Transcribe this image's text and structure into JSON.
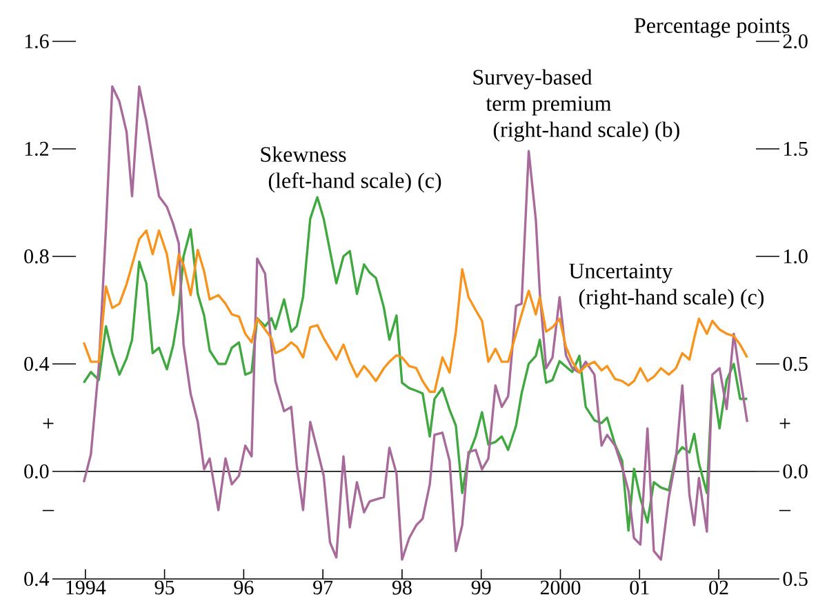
{
  "chart_data": {
    "type": "line",
    "x": [
      1993.98,
      1994.07,
      1994.17,
      1994.26,
      1994.34,
      1994.43,
      1994.52,
      1994.59,
      1994.68,
      1994.77,
      1994.85,
      1994.93,
      1995.03,
      1995.11,
      1995.18,
      1995.24,
      1995.33,
      1995.42,
      1995.5,
      1995.57,
      1995.68,
      1995.77,
      1995.85,
      1995.94,
      1996.02,
      1996.1,
      1996.17,
      1996.27,
      1996.35,
      1996.4,
      1996.51,
      1996.6,
      1996.67,
      1996.75,
      1996.84,
      1996.93,
      1997.01,
      1997.09,
      1997.17,
      1997.26,
      1997.34,
      1997.43,
      1997.52,
      1997.59,
      1997.67,
      1997.77,
      1997.84,
      1997.93,
      1998.0,
      1998.09,
      1998.18,
      1998.26,
      1998.35,
      1998.41,
      1998.51,
      1998.6,
      1998.68,
      1998.76,
      1998.84,
      1998.93,
      1999.01,
      1999.09,
      1999.18,
      1999.26,
      1999.34,
      1999.44,
      1999.51,
      1999.6,
      1999.69,
      1999.74,
      1999.82,
      1999.9,
      1999.99,
      2000.07,
      2000.15,
      2000.24,
      2000.32,
      2000.43,
      2000.52,
      2000.59,
      2000.69,
      2000.78,
      2000.86,
      2000.93,
      2001.01,
      2001.1,
      2001.18,
      2001.27,
      2001.37,
      2001.46,
      2001.54,
      2001.63,
      2001.69,
      2001.75,
      2001.85,
      2001.92,
      2002.01,
      2002.1,
      2002.19,
      2002.27,
      2002.36
    ],
    "series": [
      {
        "name": "Skewness (left-hand scale) (c)",
        "color": "#3fa83f",
        "values": [
          0.33,
          0.37,
          0.34,
          0.54,
          0.44,
          0.36,
          0.42,
          0.49,
          0.78,
          0.7,
          0.44,
          0.46,
          0.38,
          0.47,
          0.6,
          0.8,
          0.9,
          0.66,
          0.58,
          0.45,
          0.4,
          0.4,
          0.46,
          0.48,
          0.36,
          0.37,
          0.57,
          0.54,
          0.57,
          0.53,
          0.64,
          0.52,
          0.54,
          0.65,
          0.94,
          1.02,
          0.94,
          0.82,
          0.7,
          0.8,
          0.82,
          0.66,
          0.77,
          0.74,
          0.72,
          0.61,
          0.49,
          0.58,
          0.33,
          0.31,
          0.3,
          0.29,
          0.13,
          0.27,
          0.31,
          0.23,
          0.17,
          -0.08,
          0.06,
          0.13,
          0.22,
          0.1,
          0.11,
          0.13,
          0.08,
          0.17,
          0.29,
          0.4,
          0.43,
          0.49,
          0.33,
          0.34,
          0.41,
          0.39,
          0.37,
          0.43,
          0.24,
          0.19,
          0.18,
          0.2,
          0.1,
          0.04,
          -0.22,
          0.01,
          -0.1,
          -0.19,
          -0.04,
          -0.06,
          -0.07,
          0.06,
          0.09,
          0.07,
          0.14,
          0.03,
          -0.08,
          0.34,
          0.16,
          0.34,
          0.4,
          0.27,
          0.27
        ]
      },
      {
        "name": "Survey-based term premium (right-hand scale) (b)",
        "color": "#a86a9a",
        "axis": "y2",
        "values": [
          -0.05,
          0.08,
          0.49,
          1.13,
          1.79,
          1.72,
          1.58,
          1.28,
          1.79,
          1.63,
          1.45,
          1.28,
          1.23,
          1.15,
          1.06,
          0.59,
          0.36,
          0.23,
          0.01,
          0.06,
          -0.18,
          0.06,
          -0.06,
          -0.02,
          0.12,
          0.07,
          0.99,
          0.92,
          0.58,
          0.42,
          0.28,
          0.3,
          0.03,
          -0.18,
          0.23,
          0.1,
          -0.02,
          -0.33,
          -0.4,
          0.07,
          -0.26,
          -0.05,
          -0.19,
          -0.14,
          -0.13,
          -0.12,
          0.11,
          -0.01,
          -0.41,
          -0.31,
          -0.25,
          -0.22,
          -0.06,
          0.17,
          0.18,
          0.05,
          -0.37,
          -0.25,
          0.09,
          0.1,
          0.01,
          0.06,
          0.4,
          0.3,
          0.35,
          0.77,
          0.78,
          1.49,
          1.17,
          0.83,
          0.48,
          0.53,
          0.81,
          0.54,
          0.48,
          0.46,
          0.51,
          0.45,
          0.12,
          0.17,
          0.12,
          0.02,
          -0.09,
          -0.31,
          -0.34,
          0.2,
          -0.37,
          -0.41,
          -0.12,
          0.06,
          0.4,
          -0.11,
          -0.25,
          -0.03,
          -0.28,
          0.45,
          0.48,
          0.29,
          0.64,
          0.44,
          0.23
        ]
      },
      {
        "name": "Uncertainty (right-hand scale) (c)",
        "color": "#f7941e",
        "axis": "y2",
        "values": [
          0.6,
          0.51,
          0.51,
          0.86,
          0.76,
          0.78,
          0.87,
          0.96,
          1.08,
          1.12,
          1.01,
          1.12,
          1.01,
          0.82,
          1.01,
          0.96,
          0.82,
          1.03,
          0.93,
          0.8,
          0.82,
          0.78,
          0.73,
          0.72,
          0.64,
          0.6,
          0.71,
          0.66,
          0.62,
          0.55,
          0.57,
          0.6,
          0.58,
          0.53,
          0.67,
          0.68,
          0.62,
          0.57,
          0.52,
          0.59,
          0.51,
          0.44,
          0.49,
          0.46,
          0.42,
          0.48,
          0.51,
          0.54,
          0.53,
          0.49,
          0.48,
          0.42,
          0.37,
          0.37,
          0.53,
          0.46,
          0.65,
          0.94,
          0.81,
          0.75,
          0.7,
          0.51,
          0.57,
          0.51,
          0.51,
          0.64,
          0.73,
          0.84,
          0.73,
          0.81,
          0.65,
          0.67,
          0.71,
          0.58,
          0.51,
          0.46,
          0.49,
          0.51,
          0.47,
          0.49,
          0.43,
          0.42,
          0.4,
          0.42,
          0.48,
          0.42,
          0.44,
          0.48,
          0.45,
          0.48,
          0.55,
          0.52,
          0.62,
          0.71,
          0.64,
          0.7,
          0.66,
          0.64,
          0.63,
          0.59,
          0.53
        ]
      }
    ],
    "xlim": [
      1993.88,
      2002.47
    ],
    "xticks": [
      1994,
      {
        "value": 1995,
        "label": "95"
      },
      {
        "value": 1996,
        "label": "96"
      },
      {
        "value": 1997,
        "label": "97"
      },
      {
        "value": 1998,
        "label": "98"
      },
      {
        "value": 1999,
        "label": "99"
      },
      2000,
      {
        "value": 2001,
        "label": "01"
      },
      {
        "value": 2002,
        "label": "02"
      }
    ],
    "ylim": [
      -0.4,
      1.6
    ],
    "yticks": [
      {
        "value": -0.4,
        "label": "0.4"
      },
      {
        "value": 0,
        "label": "0.0"
      },
      0.4,
      0.8,
      1.2,
      1.6
    ],
    "y2lim": [
      -0.5,
      2.0
    ],
    "y2ticks": [
      {
        "value": -0.5,
        "label": "0.5"
      },
      {
        "value": 0,
        "label": "0.0"
      },
      0.5,
      {
        "value": 1,
        "label": "1.0"
      },
      1.5,
      {
        "value": 2,
        "label": "2.0"
      }
    ],
    "ref_lines": [
      {
        "axis": "y",
        "value": 0,
        "color": "#333333"
      }
    ],
    "annotations": [
      "Percentage points",
      "+",
      "–",
      "+",
      "–"
    ],
    "legend": false
  }
}
